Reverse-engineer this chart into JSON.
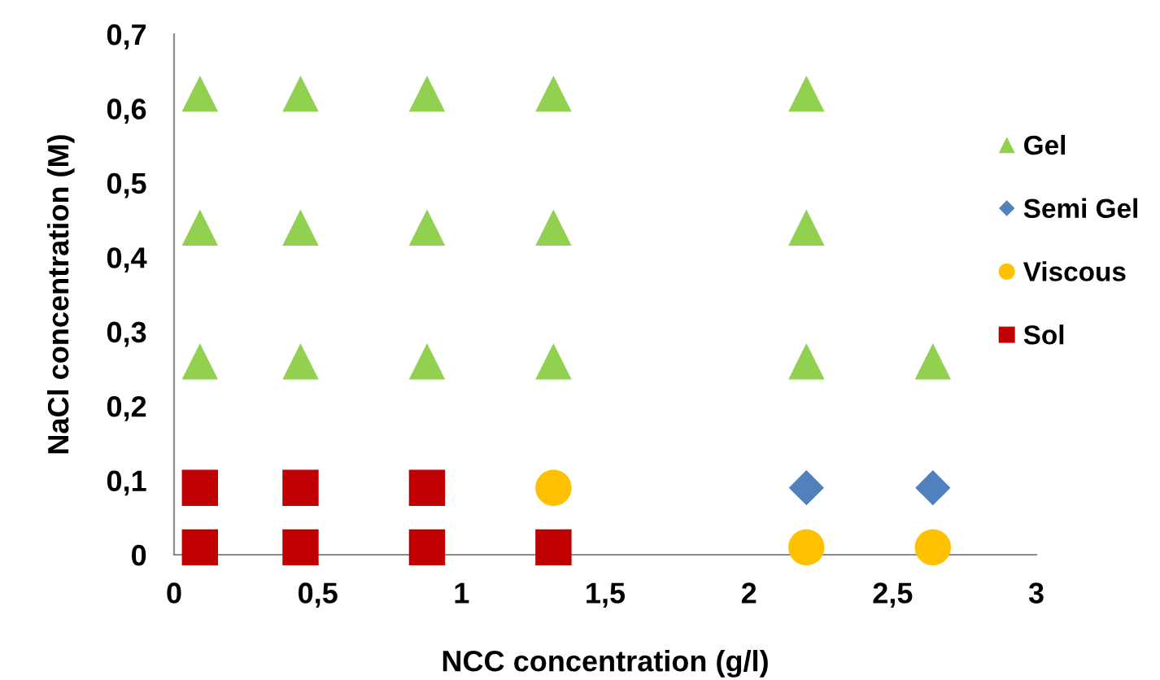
{
  "chart_data": {
    "type": "scatter",
    "xlabel": "NCC concentration (g/l)",
    "ylabel": "NaCl concentration (M)",
    "xlim": [
      0,
      3
    ],
    "xticks": [
      {
        "value": 0,
        "label": "0"
      },
      {
        "value": 0.5,
        "label": "0,5"
      },
      {
        "value": 1,
        "label": "1"
      },
      {
        "value": 1.5,
        "label": "1,5"
      },
      {
        "value": 2,
        "label": "2"
      },
      {
        "value": 2.5,
        "label": "2,5"
      },
      {
        "value": 3,
        "label": "3"
      }
    ],
    "ylim": [
      0,
      0.7
    ],
    "yticks": [
      {
        "value": 0,
        "label": "0"
      },
      {
        "value": 0.1,
        "label": "0,1"
      },
      {
        "value": 0.2,
        "label": "0,2"
      },
      {
        "value": 0.3,
        "label": "0,3"
      },
      {
        "value": 0.4,
        "label": "0,4"
      },
      {
        "value": 0.5,
        "label": "0,5"
      },
      {
        "value": 0.6,
        "label": "0,6"
      },
      {
        "value": 0.7,
        "label": "0,7"
      }
    ],
    "grid": false,
    "legend": "right",
    "series": [
      {
        "name": "Gel",
        "color": "#92d050",
        "marker": "triangle",
        "x": [
          0.09,
          0.44,
          0.88,
          1.32,
          2.2,
          0.09,
          0.44,
          0.88,
          1.32,
          2.2,
          0.09,
          0.44,
          0.88,
          1.32,
          2.2,
          2.64
        ],
        "values": [
          0.62,
          0.62,
          0.62,
          0.62,
          0.62,
          0.44,
          0.44,
          0.44,
          0.44,
          0.44,
          0.26,
          0.26,
          0.26,
          0.26,
          0.26,
          0.26
        ]
      },
      {
        "name": "Semi Gel",
        "color": "#4f81bd",
        "marker": "diamond",
        "x": [
          2.2,
          2.64
        ],
        "values": [
          0.09,
          0.09
        ]
      },
      {
        "name": "Viscous",
        "color": "#ffc000",
        "marker": "circle",
        "x": [
          1.32,
          2.2,
          2.64
        ],
        "values": [
          0.09,
          0.01,
          0.01
        ]
      },
      {
        "name": "Sol",
        "color": "#c00000",
        "marker": "square",
        "x": [
          0.09,
          0.44,
          0.88,
          0.09,
          0.44,
          0.88,
          1.32
        ],
        "values": [
          0.09,
          0.09,
          0.09,
          0.01,
          0.01,
          0.01,
          0.01
        ]
      }
    ]
  }
}
